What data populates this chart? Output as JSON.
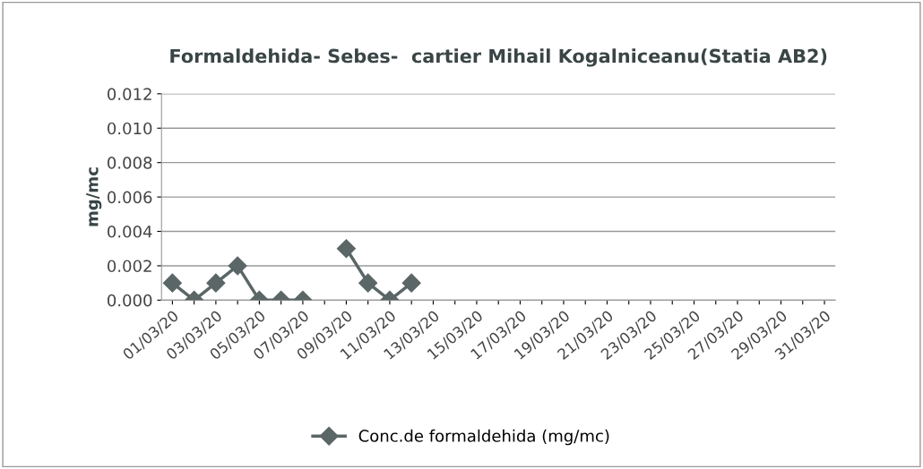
{
  "chart_data": {
    "type": "line",
    "title": "Formaldehida- Sebes-  cartier Mihail Kogalniceanu(Statia AB2)",
    "ylabel": "mg/mc",
    "categories": [
      "01/03/20",
      null,
      "03/03/20",
      null,
      "05/03/20",
      null,
      "07/03/20",
      null,
      "09/03/20",
      null,
      "11/03/20",
      null,
      "13/03/20",
      null,
      "15/03/20",
      null,
      "17/03/20",
      null,
      "19/03/20",
      null,
      "21/03/20",
      null,
      "23/03/20",
      null,
      "25/03/20",
      null,
      "27/03/20",
      null,
      "29/03/20",
      null,
      "31/03/20"
    ],
    "series": [
      {
        "name": "Conc.de formaldehida (mg/mc)",
        "color": "#5b6666",
        "values": [
          0.001,
          0.0,
          0.001,
          0.002,
          0.0,
          0.0,
          0.0,
          null,
          0.003,
          0.001,
          0.0,
          0.001,
          null,
          null,
          null,
          null,
          null,
          null,
          null,
          null,
          null,
          null,
          null,
          null,
          null,
          null,
          null,
          null,
          null,
          null,
          null
        ]
      }
    ],
    "ylim": [
      0,
      0.012
    ],
    "yticks": [
      {
        "value": 0,
        "label": "0.000"
      },
      {
        "value": 0.002,
        "label": "0.002"
      },
      {
        "value": 0.004,
        "label": "0.004"
      },
      {
        "value": 0.006,
        "label": "0.006"
      },
      {
        "value": 0.008,
        "label": "0.008"
      },
      {
        "value": 0.01,
        "label": "0.010"
      },
      {
        "value": 0.012,
        "label": "0.012"
      }
    ],
    "grid": "y",
    "legend": "bottom",
    "marker": "diamond",
    "line_style": "solid"
  }
}
